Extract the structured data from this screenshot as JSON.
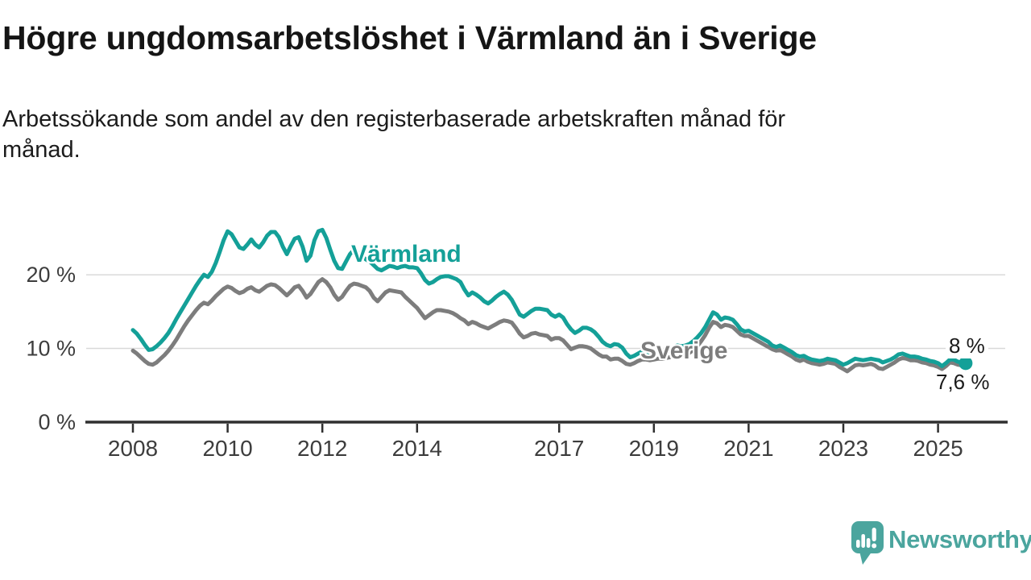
{
  "title": "Högre ungdomsarbetslöshet i Värmland än i Sverige",
  "subtitle_lines": [
    "Arbetssökande som andel av den registerbaserade arbetskraften månad för",
    "månad."
  ],
  "colors": {
    "varmland": "#14a098",
    "sverige": "#7d7d7d",
    "grid": "#d9d9d9",
    "axis": "#2f2f2f",
    "tick_text": "#3d3d3d",
    "title_text": "#151515",
    "logo": "#4ba59e"
  },
  "chart_data": {
    "type": "line",
    "title": "Högre ungdomsarbetslöshet i Värmland än i Sverige",
    "subtitle": "Arbetssökande som andel av den registerbaserade arbetskraften månad för månad.",
    "xlabel": "",
    "ylabel": "",
    "x_start_year": 2008,
    "points_per_year": 12,
    "x_ticks": [
      2008,
      2010,
      2012,
      2014,
      2017,
      2019,
      2021,
      2023,
      2025
    ],
    "y_ticks": [
      {
        "value": 0,
        "label": "0 %"
      },
      {
        "value": 10,
        "label": "10 %"
      },
      {
        "value": 20,
        "label": "20 %"
      }
    ],
    "ylim": [
      0,
      27.5
    ],
    "grid": "horizontal",
    "legend_position": "inline-labels",
    "series": [
      {
        "name": "Sverige",
        "color": "#7d7d7d",
        "end_dot": false,
        "values": [
          9.7,
          9.3,
          8.8,
          8.3,
          7.9,
          7.8,
          8.1,
          8.6,
          9.1,
          9.7,
          10.4,
          11.2,
          12.1,
          13.0,
          13.8,
          14.5,
          15.2,
          15.8,
          16.2,
          16.0,
          16.5,
          17.1,
          17.6,
          18.1,
          18.4,
          18.2,
          17.8,
          17.5,
          17.7,
          18.1,
          18.3,
          17.9,
          17.7,
          18.1,
          18.5,
          18.7,
          18.6,
          18.2,
          17.7,
          17.2,
          17.7,
          18.3,
          18.5,
          17.8,
          16.9,
          17.4,
          18.2,
          19.0,
          19.4,
          19.0,
          18.3,
          17.3,
          16.6,
          17.0,
          17.8,
          18.5,
          18.8,
          18.7,
          18.5,
          18.3,
          17.8,
          16.9,
          16.4,
          17.0,
          17.6,
          17.9,
          17.8,
          17.7,
          17.6,
          17.0,
          16.5,
          16.0,
          15.5,
          14.8,
          14.1,
          14.5,
          14.9,
          15.2,
          15.2,
          15.1,
          15.0,
          14.8,
          14.5,
          14.1,
          13.8,
          13.3,
          13.6,
          13.4,
          13.1,
          12.9,
          12.7,
          13.0,
          13.3,
          13.6,
          13.8,
          13.7,
          13.5,
          12.8,
          12.0,
          11.5,
          11.7,
          12.0,
          12.1,
          11.9,
          11.8,
          11.7,
          11.2,
          11.4,
          11.4,
          11.1,
          10.5,
          9.9,
          10.1,
          10.3,
          10.3,
          10.2,
          10.0,
          9.6,
          9.2,
          8.9,
          8.9,
          8.5,
          8.6,
          8.6,
          8.3,
          7.9,
          7.8,
          8.0,
          8.3,
          8.5,
          8.5,
          8.4,
          8.5,
          8.6,
          8.6,
          8.7,
          8.8,
          9.0,
          9.2,
          9.1,
          9.2,
          9.4,
          9.8,
          10.3,
          11.0,
          11.8,
          12.8,
          13.6,
          13.4,
          12.9,
          13.2,
          13.1,
          12.9,
          12.4,
          11.9,
          11.7,
          11.7,
          11.4,
          11.1,
          10.8,
          10.5,
          10.2,
          9.9,
          9.7,
          9.8,
          9.5,
          9.2,
          8.9,
          8.5,
          8.3,
          8.5,
          8.2,
          8.0,
          7.9,
          7.8,
          7.9,
          8.1,
          8.0,
          7.9,
          7.5,
          7.2,
          6.9,
          7.3,
          7.7,
          7.8,
          7.7,
          7.8,
          7.9,
          7.7,
          7.3,
          7.2,
          7.5,
          7.8,
          8.1,
          8.5,
          8.7,
          8.6,
          8.4,
          8.4,
          8.3,
          8.1,
          8.0,
          7.8,
          7.7,
          7.5,
          7.2,
          7.6,
          8.1,
          8.0,
          7.8,
          7.7,
          7.6
        ]
      },
      {
        "name": "Värmland",
        "color": "#14a098",
        "end_dot": true,
        "values": [
          12.5,
          12.0,
          11.3,
          10.5,
          9.8,
          9.9,
          10.3,
          10.8,
          11.4,
          12.1,
          13.0,
          14.0,
          14.9,
          15.8,
          16.7,
          17.6,
          18.5,
          19.3,
          20.0,
          19.7,
          20.4,
          21.6,
          23.1,
          24.7,
          25.9,
          25.5,
          24.6,
          23.7,
          23.5,
          24.1,
          24.8,
          24.1,
          23.7,
          24.4,
          25.3,
          25.8,
          25.8,
          25.1,
          23.8,
          22.8,
          23.9,
          24.9,
          25.1,
          23.8,
          21.9,
          22.6,
          24.7,
          25.9,
          26.1,
          25.0,
          23.4,
          21.9,
          20.9,
          20.8,
          21.8,
          22.8,
          23.4,
          23.0,
          22.5,
          22.1,
          21.8,
          21.3,
          20.8,
          20.6,
          20.9,
          21.2,
          21.1,
          20.9,
          21.1,
          21.2,
          21.0,
          21.0,
          20.9,
          20.2,
          19.3,
          18.8,
          19.0,
          19.4,
          19.7,
          19.8,
          19.8,
          19.6,
          19.4,
          19.0,
          18.0,
          17.2,
          17.6,
          17.3,
          16.9,
          16.4,
          16.1,
          16.5,
          17.0,
          17.4,
          17.7,
          17.3,
          16.6,
          15.6,
          14.6,
          14.3,
          14.7,
          15.1,
          15.4,
          15.4,
          15.3,
          15.2,
          14.6,
          14.3,
          14.6,
          14.2,
          13.3,
          12.6,
          12.1,
          12.4,
          12.8,
          12.8,
          12.6,
          12.2,
          11.6,
          10.9,
          10.5,
          10.3,
          10.6,
          10.5,
          10.1,
          9.3,
          8.8,
          9.0,
          9.3,
          9.6,
          9.5,
          9.4,
          9.5,
          9.6,
          9.6,
          9.7,
          9.9,
          10.2,
          10.4,
          10.3,
          10.4,
          10.6,
          11.0,
          11.5,
          12.1,
          12.9,
          13.9,
          14.9,
          14.6,
          13.9,
          14.2,
          14.1,
          13.9,
          13.3,
          12.6,
          12.3,
          12.4,
          12.1,
          11.8,
          11.5,
          11.2,
          10.9,
          10.4,
          10.2,
          10.4,
          10.1,
          9.8,
          9.5,
          9.1,
          8.9,
          9.0,
          8.7,
          8.5,
          8.4,
          8.3,
          8.4,
          8.6,
          8.5,
          8.4,
          8.1,
          7.8,
          8.0,
          8.3,
          8.6,
          8.5,
          8.4,
          8.5,
          8.6,
          8.5,
          8.4,
          8.1,
          8.3,
          8.5,
          8.8,
          9.2,
          9.3,
          9.1,
          8.9,
          8.9,
          8.8,
          8.6,
          8.5,
          8.3,
          8.2,
          8.0,
          7.6,
          8.0,
          8.5,
          8.5,
          8.2,
          8.1,
          8.0
        ]
      }
    ],
    "annotations": [
      {
        "series": "Värmland",
        "text": "8 %",
        "value": 8.0
      },
      {
        "series": "Sverige",
        "text": "7,6 %",
        "value": 7.6
      }
    ]
  },
  "logo": {
    "text": "Newsworthy",
    "icon": "bar-chart-speech-bubble"
  }
}
